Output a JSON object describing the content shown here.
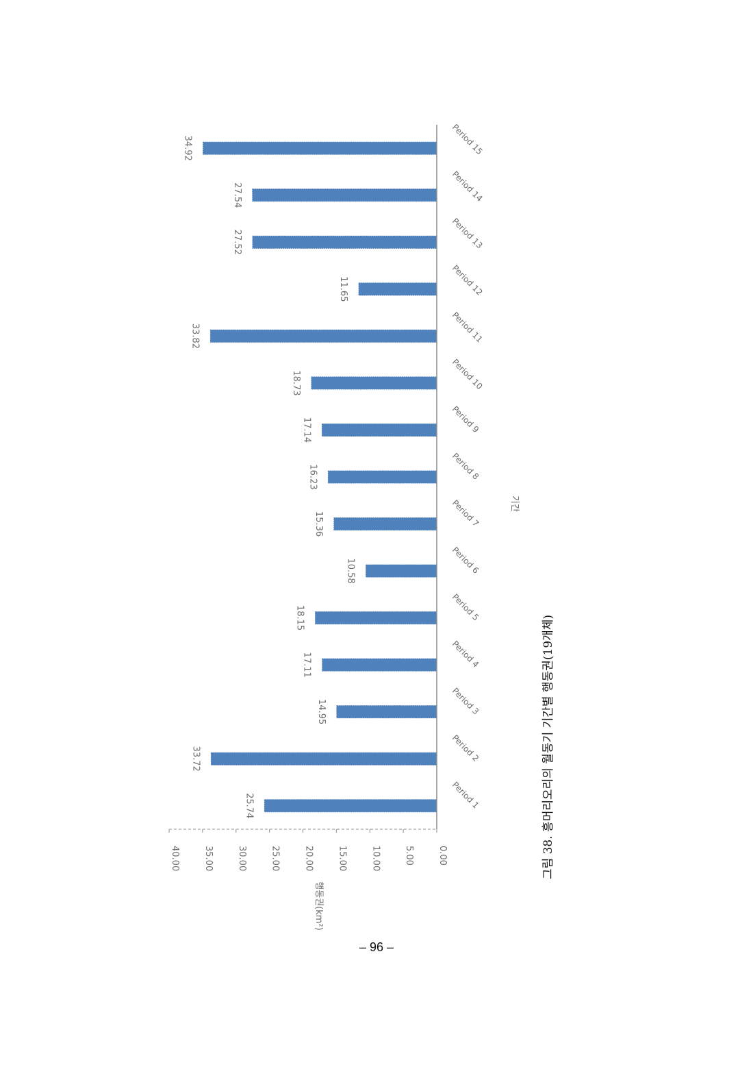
{
  "caption": "그림 38. 흥머리오리의 월동기 기간별 행동권(19개체)",
  "page_number": "– 96 –",
  "colors": {
    "bar": "#4f81bd",
    "axis": "#8c8c8c",
    "text": "#6d6d6d"
  },
  "chart_data": {
    "type": "bar",
    "orientation": "rotated-90-clockwise",
    "title": "",
    "xlabel": "기간",
    "ylabel": "행동권(km²)",
    "ylim": [
      0,
      40
    ],
    "yticks": [
      "0.00",
      "5.00",
      "10.00",
      "15.00",
      "20.00",
      "25.00",
      "30.00",
      "35.00",
      "40.00"
    ],
    "grid": false,
    "categories": [
      "Period 1",
      "Period 2",
      "Period 3",
      "Period 4",
      "Period 5",
      "Period 6",
      "Period 7",
      "Period 8",
      "Period 9",
      "Period 10",
      "Period 11",
      "Period 12",
      "Period 13",
      "Period 14",
      "Period 15"
    ],
    "values": [
      25.74,
      33.72,
      14.95,
      17.11,
      18.15,
      10.58,
      15.36,
      16.23,
      17.14,
      18.73,
      33.82,
      11.65,
      27.52,
      27.54,
      34.92
    ],
    "data_labels": [
      "25.74",
      "33.72",
      "14.95",
      "17.11",
      "18.15",
      "10.58",
      "15.36",
      "16.23",
      "17.14",
      "18.73",
      "33.82",
      "11.65",
      "27.52",
      "27.54",
      "34.92"
    ]
  }
}
